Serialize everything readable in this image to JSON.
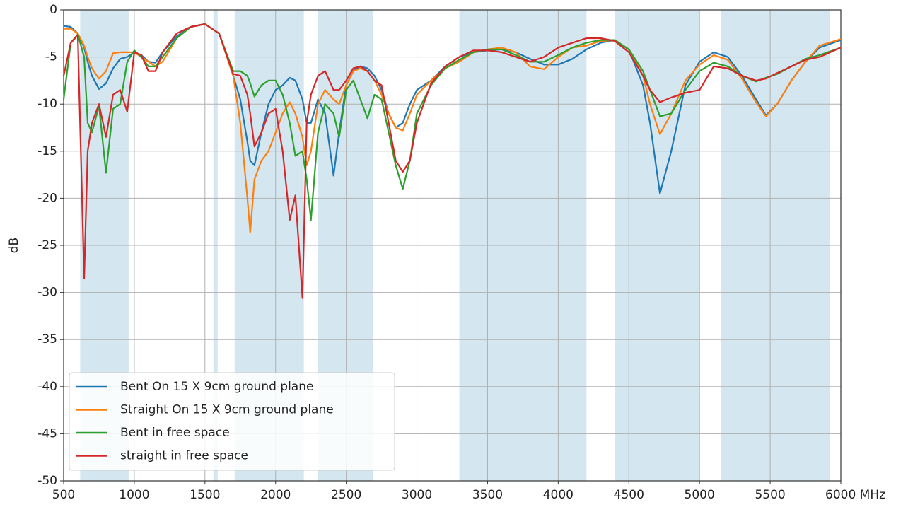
{
  "chart_data": {
    "type": "line",
    "ylabel": "dB",
    "xlim": [
      500,
      6000
    ],
    "ylim": [
      -50,
      0
    ],
    "xticks": [
      500,
      1000,
      1500,
      2000,
      2500,
      3000,
      3500,
      4000,
      4500,
      5000,
      5500,
      {
        "value": 6000,
        "label": "6000 MHz"
      }
    ],
    "yticks": [
      0,
      -5,
      -10,
      -15,
      -20,
      -25,
      -30,
      -35,
      -40,
      -45,
      -50
    ],
    "grid": true,
    "legend": "lower left",
    "bands": [
      [
        617,
        960
      ],
      [
        1560,
        1590
      ],
      [
        1710,
        2200
      ],
      [
        2300,
        2690
      ],
      [
        3300,
        4200
      ],
      [
        4400,
        5000
      ],
      [
        5150,
        5925
      ]
    ],
    "band_color": "#d4e7f1",
    "x": [
      500,
      550,
      600,
      645,
      670,
      700,
      750,
      800,
      850,
      900,
      950,
      1000,
      1050,
      1100,
      1150,
      1200,
      1300,
      1400,
      1500,
      1600,
      1700,
      1750,
      1800,
      1820,
      1850,
      1900,
      1950,
      2000,
      2050,
      2100,
      2140,
      2190,
      2220,
      2250,
      2300,
      2350,
      2410,
      2450,
      2500,
      2550,
      2600,
      2650,
      2700,
      2750,
      2800,
      2850,
      2900,
      2950,
      3000,
      3100,
      3200,
      3300,
      3400,
      3500,
      3600,
      3700,
      3800,
      3900,
      4000,
      4100,
      4200,
      4300,
      4400,
      4500,
      4600,
      4650,
      4720,
      4800,
      4900,
      5000,
      5100,
      5200,
      5300,
      5400,
      5470,
      5550,
      5650,
      5750,
      5850,
      6000
    ],
    "series": [
      {
        "name": "Bent On 15 X 9cm ground plane",
        "color": "#1f77b4",
        "values": [
          -1.7,
          -1.8,
          -2.5,
          -4,
          -5.5,
          -7,
          -8.4,
          -7.8,
          -6.2,
          -5.2,
          -5,
          -4.5,
          -4.8,
          -5.5,
          -5.6,
          -4.5,
          -2.8,
          -1.8,
          -1.5,
          -2.5,
          -7,
          -9.5,
          -14,
          -16,
          -16.5,
          -13,
          -10,
          -8.5,
          -8,
          -7.2,
          -7.5,
          -9.5,
          -12,
          -12,
          -9.5,
          -11,
          -17.6,
          -13,
          -8,
          -6.5,
          -6,
          -6.2,
          -7,
          -8.5,
          -11,
          -12.5,
          -12,
          -10,
          -8.5,
          -7.5,
          -6,
          -5,
          -4.5,
          -4.3,
          -4.2,
          -4.5,
          -5.2,
          -5.8,
          -5.8,
          -5.2,
          -4.2,
          -3.5,
          -3.2,
          -4.2,
          -8,
          -12,
          -19.5,
          -15,
          -8,
          -5.5,
          -4.5,
          -5,
          -7,
          -9.5,
          -11.2,
          -10,
          -7.5,
          -5.5,
          -4,
          -3.2
        ]
      },
      {
        "name": "Straight On 15 X 9cm ground plane",
        "color": "#ff7f0e",
        "values": [
          -2,
          -2,
          -2.5,
          -3.8,
          -5,
          -6.2,
          -7.3,
          -6.5,
          -4.6,
          -4.5,
          -4.5,
          -4.5,
          -5,
          -5.5,
          -6,
          -5.5,
          -3,
          -1.8,
          -1.5,
          -2.5,
          -7,
          -12,
          -20,
          -23.6,
          -18,
          -16,
          -15,
          -13,
          -11,
          -9.8,
          -11,
          -13.5,
          -16.5,
          -15,
          -10,
          -8.5,
          -9.5,
          -10,
          -8,
          -6.5,
          -6.2,
          -6.5,
          -7.5,
          -9,
          -11,
          -12.5,
          -12.8,
          -11,
          -9,
          -7.5,
          -6.2,
          -5.5,
          -4.5,
          -4.2,
          -4,
          -4.5,
          -6,
          -6.3,
          -5,
          -4,
          -3.8,
          -3.3,
          -3.2,
          -4.2,
          -7,
          -10,
          -13.2,
          -11,
          -7.5,
          -5.8,
          -4.8,
          -5.3,
          -7.3,
          -9.8,
          -11.3,
          -10,
          -7.5,
          -5.5,
          -3.8,
          -3.1
        ]
      },
      {
        "name": "Bent in free space",
        "color": "#2ca02c",
        "values": [
          -9.5,
          -3.5,
          -2.6,
          -5,
          -12,
          -13,
          -10.2,
          -17.3,
          -10.5,
          -10,
          -5.5,
          -4.3,
          -5,
          -6,
          -6,
          -5,
          -3,
          -1.8,
          -1.5,
          -2.5,
          -6.5,
          -6.5,
          -7,
          -7.8,
          -9.2,
          -8,
          -7.5,
          -7.5,
          -9,
          -12,
          -15.5,
          -15,
          -18,
          -22.3,
          -13,
          -10,
          -11,
          -13.5,
          -8.5,
          -7.5,
          -9.5,
          -11.5,
          -9,
          -9.5,
          -13,
          -16.5,
          -19,
          -16,
          -11,
          -8,
          -6.2,
          -5.3,
          -4.5,
          -4.2,
          -4.2,
          -4.8,
          -5.5,
          -5.5,
          -4.8,
          -4,
          -3.5,
          -3.2,
          -3.2,
          -4.2,
          -6.5,
          -8.5,
          -11.3,
          -11,
          -8.5,
          -6.5,
          -5.6,
          -6,
          -7,
          -7.6,
          -7.2,
          -6.8,
          -6,
          -5.2,
          -4.8,
          -4
        ]
      },
      {
        "name": "straight in free space",
        "color": "#d62728",
        "values": [
          -7,
          -3.5,
          -2.7,
          -28.5,
          -15,
          -12,
          -10,
          -13.5,
          -9,
          -8.5,
          -10.8,
          -4.5,
          -4.8,
          -6.5,
          -6.5,
          -4.5,
          -2.5,
          -1.8,
          -1.5,
          -2.5,
          -6.8,
          -7,
          -9,
          -11,
          -14.5,
          -13,
          -11,
          -10.5,
          -15,
          -22.3,
          -19.7,
          -30.6,
          -12,
          -9,
          -7,
          -6.5,
          -8.5,
          -8.5,
          -7.5,
          -6.2,
          -6,
          -6.5,
          -7.5,
          -8,
          -12,
          -16,
          -17.2,
          -16,
          -12,
          -7.8,
          -6,
          -5,
          -4.3,
          -4.3,
          -4.5,
          -5,
          -5.5,
          -5,
          -4,
          -3.5,
          -3,
          -3,
          -3.3,
          -4.5,
          -7,
          -8.5,
          -9.8,
          -9.3,
          -8.8,
          -8.5,
          -6,
          -6.2,
          -7,
          -7.5,
          -7.3,
          -6.7,
          -6,
          -5.3,
          -5,
          -4
        ]
      }
    ]
  }
}
